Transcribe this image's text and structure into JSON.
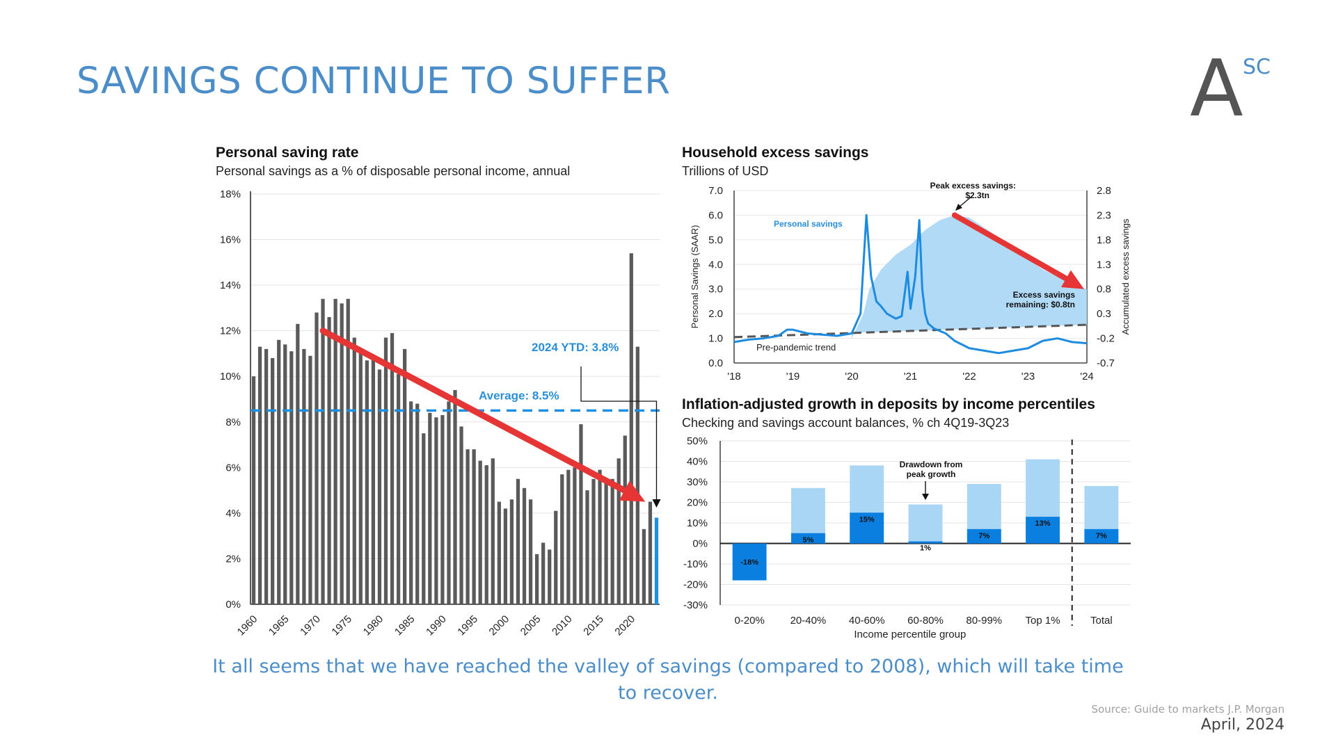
{
  "slide": {
    "title": "SAVINGS CONTINUE TO SUFFER",
    "logo_text": "A",
    "logo_superscript": "SC",
    "caption": "It all seems that we have reached the valley of savings (compared to 2008), which will take time to recover.",
    "source": "Source: Guide to markets J.P. Morgan",
    "date": "April, 2024"
  },
  "colors": {
    "title": "#4b8dc8",
    "bar_gray": "#5a5a5a",
    "bar_current": "#1f8fe0",
    "avg_line": "#1f8fe0",
    "trend_arrow": "#e53535",
    "light_blue": "#a9d6f5",
    "dark_blue": "#0b7fe0"
  },
  "chart_data": [
    {
      "type": "bar",
      "title": "Personal saving rate",
      "subtitle": "Personal savings as a % of disposable personal income, annual",
      "xlabel": "",
      "ylabel": "",
      "ylim": [
        0,
        18
      ],
      "yticks": [
        "0%",
        "2%",
        "4%",
        "6%",
        "8%",
        "10%",
        "12%",
        "14%",
        "16%",
        "18%"
      ],
      "xticks": [
        "1960",
        "1965",
        "1970",
        "1975",
        "1980",
        "1985",
        "1990",
        "1995",
        "2000",
        "2005",
        "2010",
        "2015",
        "2020"
      ],
      "x": [
        1960,
        1961,
        1962,
        1963,
        1964,
        1965,
        1966,
        1967,
        1968,
        1969,
        1970,
        1971,
        1972,
        1973,
        1974,
        1975,
        1976,
        1977,
        1978,
        1979,
        1980,
        1981,
        1982,
        1983,
        1984,
        1985,
        1986,
        1987,
        1988,
        1989,
        1990,
        1991,
        1992,
        1993,
        1994,
        1995,
        1996,
        1997,
        1998,
        1999,
        2000,
        2001,
        2002,
        2003,
        2004,
        2005,
        2006,
        2007,
        2008,
        2009,
        2010,
        2011,
        2012,
        2013,
        2014,
        2015,
        2016,
        2017,
        2018,
        2019,
        2020,
        2021,
        2022,
        2023,
        2024
      ],
      "values": [
        10.0,
        11.3,
        11.2,
        10.8,
        11.6,
        11.4,
        11.1,
        12.3,
        11.2,
        10.9,
        12.8,
        13.4,
        12.6,
        13.4,
        13.2,
        13.4,
        11.7,
        11.2,
        10.7,
        10.8,
        10.3,
        11.7,
        11.9,
        10.1,
        11.2,
        8.9,
        8.8,
        7.5,
        8.4,
        8.2,
        8.3,
        8.9,
        9.4,
        7.8,
        6.8,
        6.8,
        6.3,
        6.1,
        6.4,
        4.5,
        4.2,
        4.6,
        5.5,
        5.1,
        4.6,
        2.2,
        2.7,
        2.4,
        4.1,
        5.7,
        5.9,
        6.0,
        7.9,
        5.0,
        5.5,
        5.9,
        5.4,
        5.5,
        6.4,
        7.4,
        15.4,
        11.3,
        3.3,
        4.5,
        3.8
      ],
      "current_bar_label": "2024 YTD: 3.8%",
      "average": 8.5,
      "average_label": "Average: 8.5%"
    },
    {
      "type": "line",
      "title": "Household excess savings",
      "subtitle": "Trillions of USD",
      "xticks": [
        "'18",
        "'19",
        "'20",
        "'21",
        "'22",
        "'23",
        "'24"
      ],
      "ylabel_left": "Personal Savings (SAAR)",
      "ylim_left": [
        0,
        7
      ],
      "yticks_left": [
        "0.0",
        "1.0",
        "2.0",
        "3.0",
        "4.0",
        "5.0",
        "6.0",
        "7.0"
      ],
      "ylabel_right": "Accumulated excess savings",
      "ylim_right": [
        -0.7,
        2.8
      ],
      "yticks_right": [
        "-0.7",
        "-0.2",
        "0.3",
        "0.8",
        "1.3",
        "1.8",
        "2.3",
        "2.8"
      ],
      "annotations": {
        "peak_line1": "Peak excess savings:",
        "peak_line2": "$2.3tn",
        "remain_line1": "Excess savings",
        "remain_line2": "remaining: $0.8tn",
        "personal_savings": "Personal savings",
        "trend": "Pre-pandemic trend"
      },
      "series": [
        {
          "name": "Personal savings",
          "x": [
            2018.0,
            2018.25,
            2018.5,
            2018.75,
            2018.9,
            2019.0,
            2019.25,
            2019.5,
            2019.75,
            2020.0,
            2020.15,
            2020.25,
            2020.33,
            2020.42,
            2020.5,
            2020.6,
            2020.75,
            2020.85,
            2020.95,
            2021.0,
            2021.08,
            2021.15,
            2021.2,
            2021.25,
            2021.3,
            2021.4,
            2021.5,
            2021.6,
            2021.75,
            2022.0,
            2022.25,
            2022.5,
            2022.75,
            2023.0,
            2023.25,
            2023.5,
            2023.75,
            2024.0
          ],
          "values": [
            0.85,
            0.95,
            1.0,
            1.1,
            1.35,
            1.35,
            1.2,
            1.15,
            1.1,
            1.2,
            2.0,
            6.0,
            3.5,
            2.5,
            2.3,
            2.0,
            1.8,
            1.9,
            3.7,
            2.2,
            3.5,
            5.8,
            3.0,
            2.0,
            1.6,
            1.4,
            1.3,
            1.2,
            0.9,
            0.6,
            0.5,
            0.4,
            0.5,
            0.6,
            0.9,
            1.0,
            0.85,
            0.8
          ]
        },
        {
          "name": "Accumulated excess savings",
          "x": [
            2020.0,
            2020.2,
            2020.3,
            2020.5,
            2020.75,
            2021.0,
            2021.25,
            2021.5,
            2021.75,
            2022.0,
            2022.25,
            2022.5,
            2022.75,
            2023.0,
            2023.25,
            2023.5,
            2023.75,
            2024.0
          ],
          "values": [
            -0.2,
            0.3,
            0.8,
            1.2,
            1.5,
            1.7,
            2.0,
            2.2,
            2.3,
            2.25,
            2.05,
            1.85,
            1.6,
            1.4,
            1.2,
            1.05,
            0.9,
            0.8
          ]
        },
        {
          "name": "Pre-pandemic trend",
          "x": [
            2018.0,
            2024.0
          ],
          "values": [
            1.05,
            1.55
          ]
        }
      ]
    },
    {
      "type": "bar",
      "title": "Inflation-adjusted growth in deposits by income percentiles",
      "subtitle": "Checking and savings account balances, % ch 4Q19-3Q23",
      "xlabel": "Income percentile group",
      "ylim": [
        -30,
        50
      ],
      "yticks": [
        "-30%",
        "-20%",
        "-10%",
        "0%",
        "10%",
        "20%",
        "30%",
        "40%",
        "50%"
      ],
      "categories": [
        "0-20%",
        "20-40%",
        "40-60%",
        "60-80%",
        "80-99%",
        "Top 1%",
        "Total"
      ],
      "peak_values": [
        -18,
        27,
        38,
        19,
        29,
        41,
        28
      ],
      "values": [
        -18,
        5,
        15,
        1,
        7,
        13,
        7
      ],
      "value_labels": [
        "-18%",
        "5%",
        "15%",
        "1%",
        "7%",
        "13%",
        "7%"
      ],
      "annotation_line1": "Drawdown from",
      "annotation_line2": "peak growth"
    }
  ]
}
